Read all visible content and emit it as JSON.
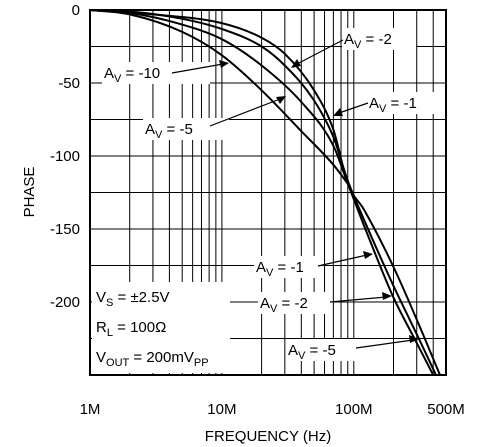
{
  "chart_data": {
    "type": "line",
    "title": "",
    "xlabel": "FREQUENCY (Hz)",
    "ylabel": "PHASE",
    "x_scale": "log",
    "xlim": [
      1000000,
      500000000
    ],
    "ylim": [
      -250,
      0
    ],
    "x_tick_labels": [
      {
        "value": 1000000,
        "label": "1M"
      },
      {
        "value": 10000000,
        "label": "10M"
      },
      {
        "value": 100000000,
        "label": "100M"
      },
      {
        "value": 500000000,
        "label": "500M"
      }
    ],
    "y_tick_labels": [
      {
        "value": 0,
        "label": "0"
      },
      {
        "value": -50,
        "label": "-50"
      },
      {
        "value": -100,
        "label": "-100"
      },
      {
        "value": -150,
        "label": "-150"
      },
      {
        "value": -200,
        "label": "-200"
      }
    ],
    "grid": true,
    "conditions": {
      "vs": {
        "main": "V",
        "sub": "S",
        "rest": " = ±2.5V"
      },
      "rl": {
        "main": "R",
        "sub": "L",
        "rest": " = 100Ω"
      },
      "vout": {
        "main": "V",
        "sub": "OUT",
        "rest": " = 200mV",
        "sub2": "PP"
      }
    },
    "series": [
      {
        "key": "av_m10",
        "x": [
          1000000,
          2000000,
          5000000,
          10000000,
          20000000,
          40000000,
          70000000,
          90000000
        ],
        "y": [
          0,
          -3,
          -15,
          -31,
          -55,
          -83,
          -106,
          -119
        ]
      },
      {
        "key": "av_m5",
        "x": [
          1000000,
          2000000,
          5000000,
          10000000,
          20000000,
          40000000,
          70000000,
          90000000,
          120000000,
          200000000,
          300000000,
          400000000
        ],
        "y": [
          0,
          -2,
          -10,
          -20,
          -38,
          -63,
          -93,
          -119,
          -148,
          -197,
          -228,
          -250
        ]
      },
      {
        "key": "av_m2",
        "x": [
          1000000,
          2000000,
          5000000,
          10000000,
          20000000,
          30000000,
          50000000,
          70000000,
          90000000,
          120000000,
          200000000,
          300000000,
          420000000
        ],
        "y": [
          0,
          -1,
          -6,
          -13,
          -25,
          -38,
          -62,
          -87,
          -117,
          -144,
          -189,
          -222,
          -250
        ]
      },
      {
        "key": "av_m1",
        "x": [
          1000000,
          3000000,
          10000000,
          20000000,
          30000000,
          50000000,
          70000000,
          90000000,
          120000000,
          200000000,
          300000000,
          450000000
        ],
        "y": [
          0,
          -3,
          -9,
          -19,
          -30,
          -55,
          -82,
          -119,
          -137,
          -176,
          -212,
          -250
        ]
      }
    ],
    "annotations": [
      {
        "main": "A",
        "sub": "V",
        "rest": " = -10"
      },
      {
        "main": "A",
        "sub": "V",
        "rest": " = -5"
      },
      {
        "main": "A",
        "sub": "V",
        "rest": " = -2"
      },
      {
        "main": "A",
        "sub": "V",
        "rest": " = -1"
      },
      {
        "main": "A",
        "sub": "V",
        "rest": " = -1"
      },
      {
        "main": "A",
        "sub": "V",
        "rest": " = -2"
      },
      {
        "main": "A",
        "sub": "V",
        "rest": " = -5"
      }
    ]
  }
}
